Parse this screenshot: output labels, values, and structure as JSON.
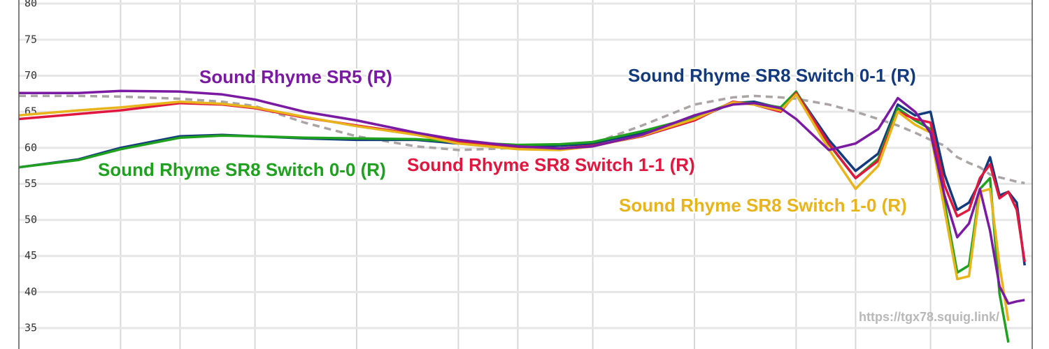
{
  "chart_data": {
    "type": "line",
    "log_x": true,
    "grid": true,
    "xlim": [
      10,
      10000
    ],
    "ylim": [
      32.1,
      80.5
    ],
    "yticks": [
      35,
      40,
      45,
      50,
      55,
      60,
      65,
      70,
      75,
      80
    ],
    "xticks": [
      20,
      30,
      50,
      100,
      200,
      300,
      500,
      1000,
      2000,
      3000,
      5000
    ],
    "watermark": "https://tgx78.squig.link/",
    "x": [
      10,
      15,
      20,
      30,
      40,
      50,
      70,
      100,
      150,
      200,
      300,
      400,
      500,
      700,
      1000,
      1300,
      1500,
      1800,
      2000,
      2500,
      3000,
      3500,
      4000,
      4500,
      5000,
      5500,
      6000,
      6500,
      7000,
      7500,
      8000,
      8500,
      9000,
      9500
    ],
    "series": [
      {
        "color": "#aaa4a4",
        "dashed": true,
        "values": [
          67.2,
          67.2,
          67.1,
          66.8,
          66.4,
          65.8,
          63.5,
          61.6,
          60.2,
          59.7,
          60,
          60.3,
          60.6,
          63.1,
          66,
          67,
          67.2,
          67,
          66.8,
          66,
          65,
          64,
          63.1,
          62.1,
          61.1,
          60.3,
          58.7,
          57.9,
          57.3,
          56.3,
          55.9,
          55.6,
          55.3,
          55.1
        ]
      },
      {
        "name": "Sound Rhyme SR8 Switch 0-1 (R)",
        "color": "#123a7c",
        "values": [
          57.3,
          58.4,
          60,
          61.6,
          61.8,
          61.6,
          61.3,
          61.1,
          61.1,
          60.6,
          60.2,
          60.3,
          60.6,
          62.1,
          64,
          66.2,
          66.4,
          65.5,
          67.7,
          61.1,
          56.8,
          59.2,
          66,
          64.5,
          65,
          56.3,
          51.4,
          52.4,
          55.3,
          58.7,
          53.4,
          53.9,
          52.4,
          43.7
        ]
      },
      {
        "name": "Sound Rhyme SR8 Switch 0-0 (R)",
        "color": "#1fa01f",
        "values": [
          57.3,
          58.3,
          59.8,
          61.4,
          61.7,
          61.6,
          61.4,
          61.3,
          61.2,
          60.8,
          60.4,
          60.5,
          60.8,
          62.3,
          64.2,
          66.3,
          66.2,
          65.6,
          67.8,
          60.5,
          55.8,
          58.5,
          65.5,
          63.8,
          62.6,
          52.4,
          42.7,
          43.7,
          54.3,
          55.8,
          39.8,
          33,
          null,
          null
        ]
      },
      {
        "name": "Sound Rhyme SR8 Switch 1-1 (R)",
        "color": "#e0183f",
        "values": [
          64,
          64.7,
          65.2,
          66.2,
          66,
          65.5,
          64.2,
          63.1,
          61.9,
          60.8,
          59.9,
          59.9,
          60.3,
          61.6,
          63.8,
          66.4,
          66,
          65,
          67.6,
          60.6,
          55.8,
          58.2,
          65,
          64,
          63.5,
          54.8,
          50.5,
          51.4,
          55.8,
          57.7,
          53,
          53.9,
          51.4,
          44.2
        ]
      },
      {
        "name": "Sound Rhyme SR8 Switch 1-0 (R)",
        "color": "#e8b41c",
        "values": [
          64.5,
          65.2,
          65.6,
          66.4,
          66.1,
          65.6,
          64.3,
          63,
          61.8,
          60.6,
          59.8,
          59.7,
          60.2,
          61.7,
          64,
          66.3,
          66,
          65.2,
          67.4,
          59.8,
          54.3,
          57.5,
          65,
          63.2,
          62.1,
          51.4,
          41.8,
          42.2,
          53.9,
          54.3,
          43.7,
          36,
          null,
          null
        ]
      },
      {
        "name": "Sound Rhyme SR5 (R)",
        "color": "#7a1aa2",
        "values": [
          67.6,
          67.6,
          67.9,
          67.8,
          67.4,
          66.7,
          65,
          63.8,
          62.1,
          61.1,
          60.2,
          59.9,
          60.2,
          61.8,
          64.5,
          66,
          66.2,
          65.5,
          64,
          59.7,
          60.6,
          62.6,
          66.9,
          65,
          62.1,
          53.4,
          47.6,
          49.5,
          54.3,
          48.5,
          40.8,
          38.4,
          38.7,
          38.9
        ]
      }
    ]
  }
}
